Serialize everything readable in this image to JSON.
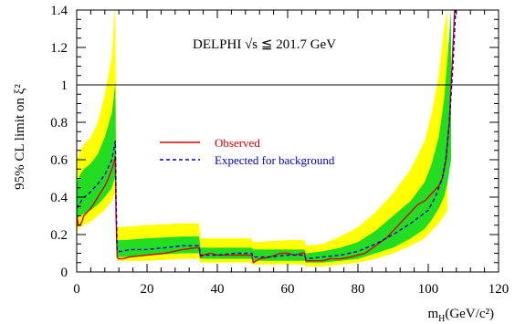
{
  "chart_data": {
    "type": "line",
    "title": "DELPHI √s ≦ 201.7 GeV",
    "xlabel": "m",
    "xlabel_sub": "H",
    "xlabel_unit": "(GeV/c²)",
    "ylabel": "95% CL limit on ξ²",
    "xlim": [
      0,
      120
    ],
    "ylim": [
      0,
      1.4
    ],
    "x_ticks": [
      0,
      20,
      40,
      60,
      80,
      100,
      120
    ],
    "x_tick_labels": [
      "0",
      "20",
      "40",
      "60",
      "80",
      "100",
      "120"
    ],
    "y_ticks": [
      0,
      0.2,
      0.4,
      0.6,
      0.8,
      1,
      1.2,
      1.4
    ],
    "y_tick_labels": [
      "0",
      "0.2",
      "0.4",
      "0.6",
      "0.8",
      "1",
      "1.2",
      "1.4"
    ],
    "reference_line_y": 1,
    "grid": false,
    "legend_position": "center-left",
    "colors": {
      "observed": "#dd0000",
      "expected": "#0000cc",
      "band_1sigma": "#22dd22",
      "band_2sigma": "#ffff00",
      "axis": "#000000"
    },
    "series": [
      {
        "name": "Observed",
        "style": "solid",
        "x": [
          0,
          0.5,
          1,
          1.5,
          2,
          2.5,
          3,
          4,
          5,
          6,
          7,
          8,
          9,
          10,
          10.8,
          11,
          11.2,
          11.5,
          12,
          13,
          15,
          20,
          25,
          30,
          34,
          34.8,
          35.2,
          36,
          38,
          40,
          42,
          45,
          48,
          49.8,
          50.2,
          52,
          55,
          58,
          60,
          62,
          64,
          64.8,
          65.2,
          68,
          70,
          72,
          75,
          78,
          80,
          82,
          85,
          88,
          90,
          92,
          95,
          97,
          99,
          100,
          101,
          102,
          103,
          104,
          105,
          106,
          106.5,
          107,
          107.5
        ],
        "y": [
          0.3,
          0.25,
          0.25,
          0.27,
          0.3,
          0.31,
          0.32,
          0.34,
          0.37,
          0.4,
          0.43,
          0.46,
          0.5,
          0.55,
          0.6,
          0.62,
          0.3,
          0.08,
          0.07,
          0.07,
          0.08,
          0.09,
          0.1,
          0.12,
          0.13,
          0.13,
          0.08,
          0.09,
          0.1,
          0.09,
          0.09,
          0.09,
          0.09,
          0.09,
          0.05,
          0.07,
          0.08,
          0.1,
          0.1,
          0.09,
          0.1,
          0.1,
          0.06,
          0.06,
          0.06,
          0.07,
          0.07,
          0.08,
          0.09,
          0.1,
          0.14,
          0.18,
          0.22,
          0.26,
          0.32,
          0.36,
          0.38,
          0.4,
          0.42,
          0.44,
          0.46,
          0.5,
          0.6,
          0.8,
          1.0,
          1.2,
          1.4
        ]
      },
      {
        "name": "Expected for background",
        "style": "dashed",
        "x": [
          0,
          1,
          2,
          3,
          4,
          6,
          8,
          10,
          10.8,
          11,
          11.2,
          11.5,
          13,
          15,
          20,
          25,
          30,
          34,
          34.8,
          35.2,
          40,
          45,
          49.8,
          50.2,
          55,
          60,
          64.8,
          65.2,
          70,
          75,
          80,
          85,
          90,
          95,
          100,
          102,
          104,
          105,
          106,
          107,
          107.8
        ],
        "y": [
          0.34,
          0.37,
          0.4,
          0.41,
          0.43,
          0.47,
          0.52,
          0.6,
          0.68,
          0.7,
          0.4,
          0.11,
          0.11,
          0.12,
          0.12,
          0.13,
          0.14,
          0.14,
          0.14,
          0.09,
          0.09,
          0.1,
          0.1,
          0.08,
          0.08,
          0.09,
          0.09,
          0.07,
          0.08,
          0.09,
          0.11,
          0.15,
          0.2,
          0.26,
          0.33,
          0.4,
          0.5,
          0.6,
          0.8,
          1.1,
          1.4
        ]
      }
    ],
    "bands": [
      {
        "sigma": 2,
        "x": [
          0,
          1,
          2,
          4,
          6,
          8,
          10,
          10.8,
          11,
          11.2,
          11.5,
          13,
          20,
          30,
          34,
          34.8,
          35.2,
          40,
          49.8,
          50.2,
          60,
          64.8,
          65.2,
          70,
          75,
          80,
          85,
          90,
          95,
          99,
          101,
          103,
          104.5,
          105.5
        ],
        "upper": [
          0.6,
          0.65,
          0.68,
          0.72,
          0.8,
          0.95,
          1.15,
          1.4,
          1.4,
          0.8,
          0.24,
          0.24,
          0.25,
          0.26,
          0.26,
          0.26,
          0.18,
          0.18,
          0.18,
          0.16,
          0.17,
          0.17,
          0.14,
          0.15,
          0.19,
          0.24,
          0.32,
          0.42,
          0.55,
          0.7,
          0.85,
          1.05,
          1.3,
          1.4
        ],
        "lower": [
          0.22,
          0.24,
          0.25,
          0.27,
          0.3,
          0.33,
          0.38,
          0.42,
          0.42,
          0.25,
          0.06,
          0.06,
          0.06,
          0.07,
          0.07,
          0.07,
          0.05,
          0.05,
          0.05,
          0.04,
          0.04,
          0.04,
          0.03,
          0.03,
          0.04,
          0.05,
          0.07,
          0.1,
          0.14,
          0.18,
          0.22,
          0.26,
          0.3,
          0.33
        ]
      },
      {
        "sigma": 1,
        "x": [
          0,
          1,
          2,
          4,
          6,
          8,
          10,
          10.8,
          11,
          11.2,
          11.5,
          13,
          20,
          30,
          34,
          34.8,
          35.2,
          40,
          49.8,
          50.2,
          60,
          64.8,
          65.2,
          70,
          75,
          80,
          85,
          90,
          95,
          99,
          101,
          103,
          104.5,
          105.5,
          106.5
        ],
        "upper": [
          0.48,
          0.52,
          0.55,
          0.58,
          0.63,
          0.72,
          0.85,
          0.98,
          1.0,
          0.55,
          0.17,
          0.17,
          0.18,
          0.19,
          0.19,
          0.19,
          0.13,
          0.13,
          0.13,
          0.12,
          0.12,
          0.12,
          0.1,
          0.11,
          0.13,
          0.16,
          0.22,
          0.3,
          0.38,
          0.48,
          0.58,
          0.72,
          0.92,
          1.15,
          1.4
        ],
        "lower": [
          0.28,
          0.3,
          0.31,
          0.33,
          0.36,
          0.4,
          0.45,
          0.5,
          0.5,
          0.3,
          0.08,
          0.08,
          0.09,
          0.1,
          0.1,
          0.1,
          0.07,
          0.07,
          0.07,
          0.06,
          0.06,
          0.06,
          0.05,
          0.05,
          0.06,
          0.07,
          0.1,
          0.13,
          0.18,
          0.23,
          0.28,
          0.34,
          0.4,
          0.48,
          0.6
        ]
      }
    ]
  }
}
